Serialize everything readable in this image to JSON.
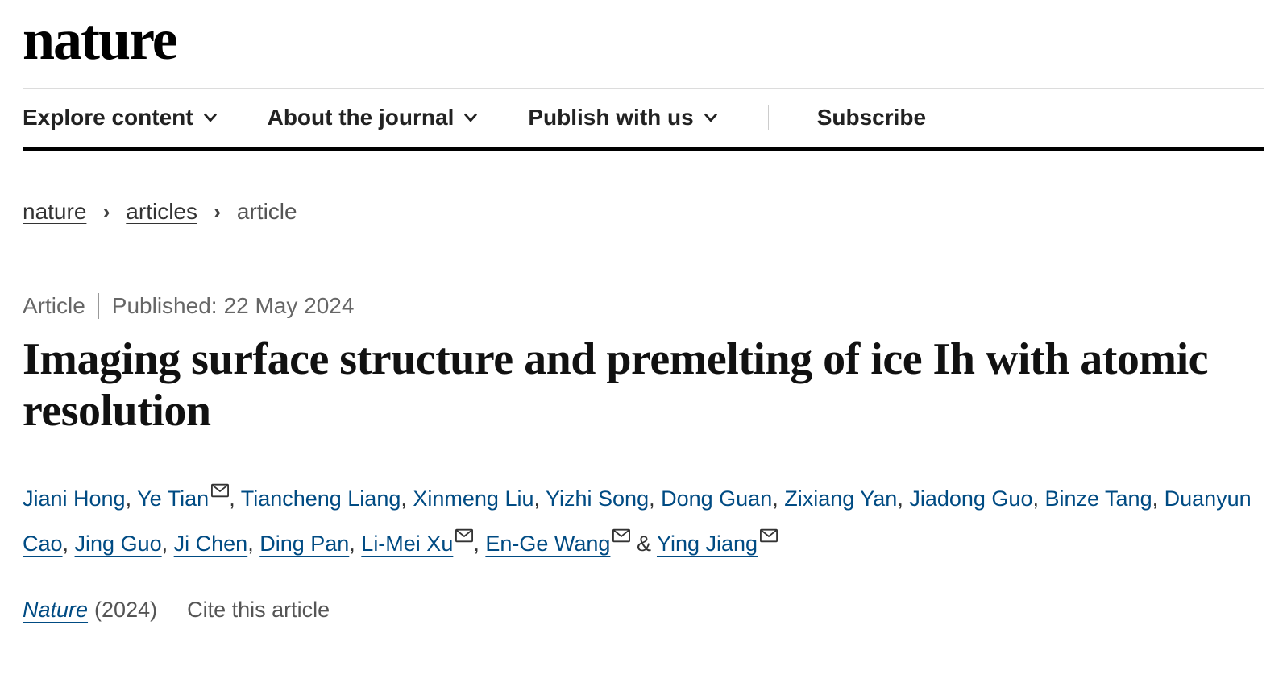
{
  "logo": "nature",
  "nav": {
    "items": [
      {
        "label": "Explore content",
        "hasChevron": true
      },
      {
        "label": "About the journal",
        "hasChevron": true
      },
      {
        "label": "Publish with us",
        "hasChevron": true
      },
      {
        "label": "Subscribe",
        "hasChevron": false
      }
    ]
  },
  "breadcrumb": {
    "link1": "nature",
    "link2": "articles",
    "current": "article"
  },
  "meta": {
    "type": "Article",
    "published_label": "Published:",
    "published_date": "22 May 2024"
  },
  "title": "Imaging surface structure and premelting of ice Ih with atomic resolution",
  "authors": [
    {
      "name": "Jiani Hong",
      "corresponding": false
    },
    {
      "name": "Ye Tian",
      "corresponding": true
    },
    {
      "name": "Tiancheng Liang",
      "corresponding": false
    },
    {
      "name": "Xinmeng Liu",
      "corresponding": false
    },
    {
      "name": "Yizhi Song",
      "corresponding": false
    },
    {
      "name": "Dong Guan",
      "corresponding": false
    },
    {
      "name": "Zixiang Yan",
      "corresponding": false
    },
    {
      "name": "Jiadong Guo",
      "corresponding": false
    },
    {
      "name": "Binze Tang",
      "corresponding": false
    },
    {
      "name": "Duanyun Cao",
      "corresponding": false
    },
    {
      "name": "Jing Guo",
      "corresponding": false
    },
    {
      "name": "Ji Chen",
      "corresponding": false
    },
    {
      "name": "Ding Pan",
      "corresponding": false
    },
    {
      "name": "Li-Mei Xu",
      "corresponding": true
    },
    {
      "name": "En-Ge Wang",
      "corresponding": true
    },
    {
      "name": "Ying Jiang",
      "corresponding": true
    }
  ],
  "citation": {
    "journal": "Nature",
    "year": "(2024)",
    "cite_label": "Cite this article"
  },
  "colors": {
    "link": "#004b83",
    "text": "#222222",
    "border": "#000000"
  }
}
